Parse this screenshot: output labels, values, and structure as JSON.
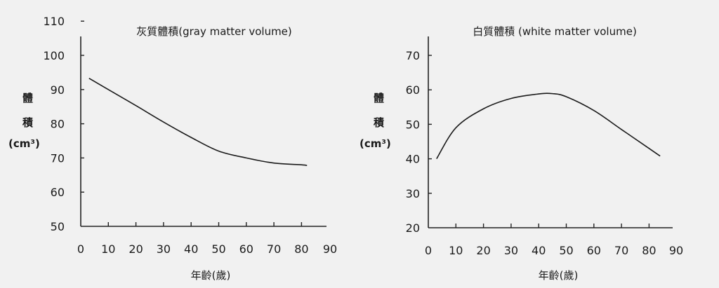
{
  "chart_data": [
    {
      "type": "line",
      "title": "灰質體積(gray matter volume)",
      "xlabel": "年齡(歲)",
      "ylabel_lines": [
        "體",
        "積",
        "(cm³)"
      ],
      "xlim": [
        0,
        90
      ],
      "ylim": [
        50,
        110
      ],
      "xticks": [
        0,
        10,
        20,
        30,
        40,
        50,
        60,
        70,
        80,
        90
      ],
      "yticks": [
        50,
        60,
        70,
        80,
        90,
        100,
        110
      ],
      "grid": false,
      "x": [
        3,
        10,
        20,
        30,
        40,
        50,
        60,
        70,
        80,
        82
      ],
      "y": [
        93.3,
        90,
        85.3,
        80.5,
        76,
        72,
        70,
        68.5,
        68,
        67.8
      ],
      "color": "#1a1a1a"
    },
    {
      "type": "line",
      "title": "白質體積 (white matter volume)",
      "xlabel": "年齡(歲)",
      "ylabel_lines": [
        "體",
        "積",
        "(cm³)"
      ],
      "xlim": [
        0,
        90
      ],
      "ylim": [
        20,
        70
      ],
      "xticks": [
        0,
        10,
        20,
        30,
        40,
        50,
        60,
        70,
        80,
        90
      ],
      "yticks": [
        20,
        30,
        40,
        50,
        60,
        70
      ],
      "grid": false,
      "x": [
        3,
        10,
        20,
        30,
        40,
        45,
        50,
        60,
        70,
        80,
        84
      ],
      "y": [
        40,
        49,
        54.5,
        57.5,
        58.8,
        58.9,
        58,
        54,
        48.5,
        43,
        40.8
      ],
      "color": "#1a1a1a"
    }
  ]
}
